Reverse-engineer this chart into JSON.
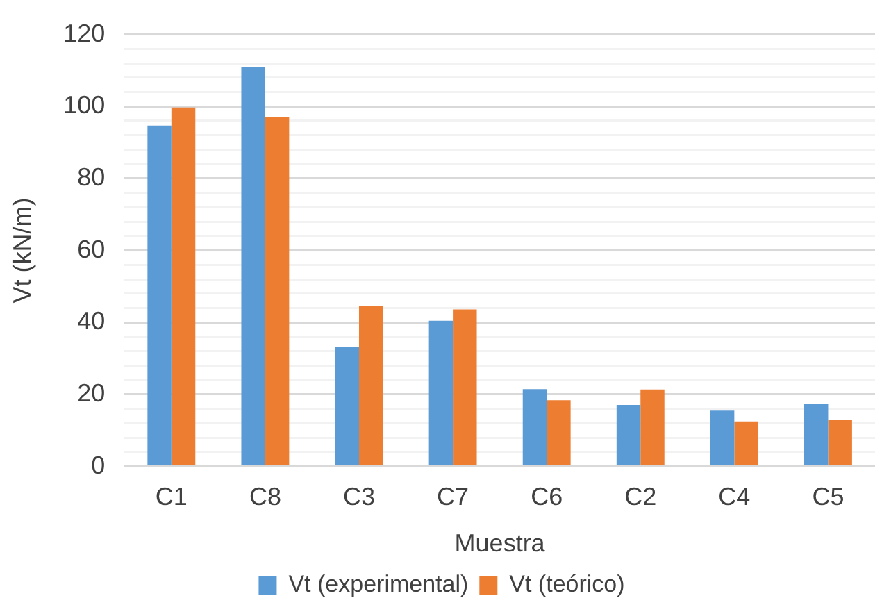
{
  "chart_data": {
    "type": "bar",
    "xlabel": "Muestra",
    "ylabel": "Vt (kN/m)",
    "categories": [
      "C1",
      "C8",
      "C3",
      "C7",
      "C6",
      "C2",
      "C4",
      "C5"
    ],
    "series": [
      {
        "name": "Vt (experimental)",
        "color": "#5b9bd5",
        "values": [
          94.7,
          110.9,
          33.3,
          40.5,
          21.5,
          17.1,
          15.5,
          17.5
        ]
      },
      {
        "name": "Vt (teórico)",
        "color": "#ed7d31",
        "values": [
          99.7,
          97.1,
          44.7,
          43.6,
          18.4,
          21.4,
          12.5,
          13.0
        ]
      }
    ],
    "ylim": [
      0,
      120
    ],
    "yticks": [
      0,
      {
        "value": 4,
        "label": null
      },
      {
        "value": 8,
        "label": null
      },
      {
        "value": 12,
        "label": null
      },
      {
        "value": 16,
        "label": null
      },
      20,
      {
        "value": 24,
        "label": null
      },
      {
        "value": 28,
        "label": null
      },
      {
        "value": 32,
        "label": null
      },
      {
        "value": 36,
        "label": null
      },
      40,
      {
        "value": 44,
        "label": null
      },
      {
        "value": 48,
        "label": null
      },
      {
        "value": 52,
        "label": null
      },
      {
        "value": 56,
        "label": null
      },
      60,
      {
        "value": 64,
        "label": null
      },
      {
        "value": 68,
        "label": null
      },
      {
        "value": 72,
        "label": null
      },
      {
        "value": 76,
        "label": null
      },
      80,
      {
        "value": 84,
        "label": null
      },
      {
        "value": 88,
        "label": null
      },
      {
        "value": 92,
        "label": null
      },
      {
        "value": 96,
        "label": null
      },
      100,
      {
        "value": 104,
        "label": null
      },
      {
        "value": 108,
        "label": null
      },
      {
        "value": 112,
        "label": null
      },
      {
        "value": 116,
        "label": null
      },
      120
    ],
    "grid": "y",
    "legend": "bottom"
  }
}
